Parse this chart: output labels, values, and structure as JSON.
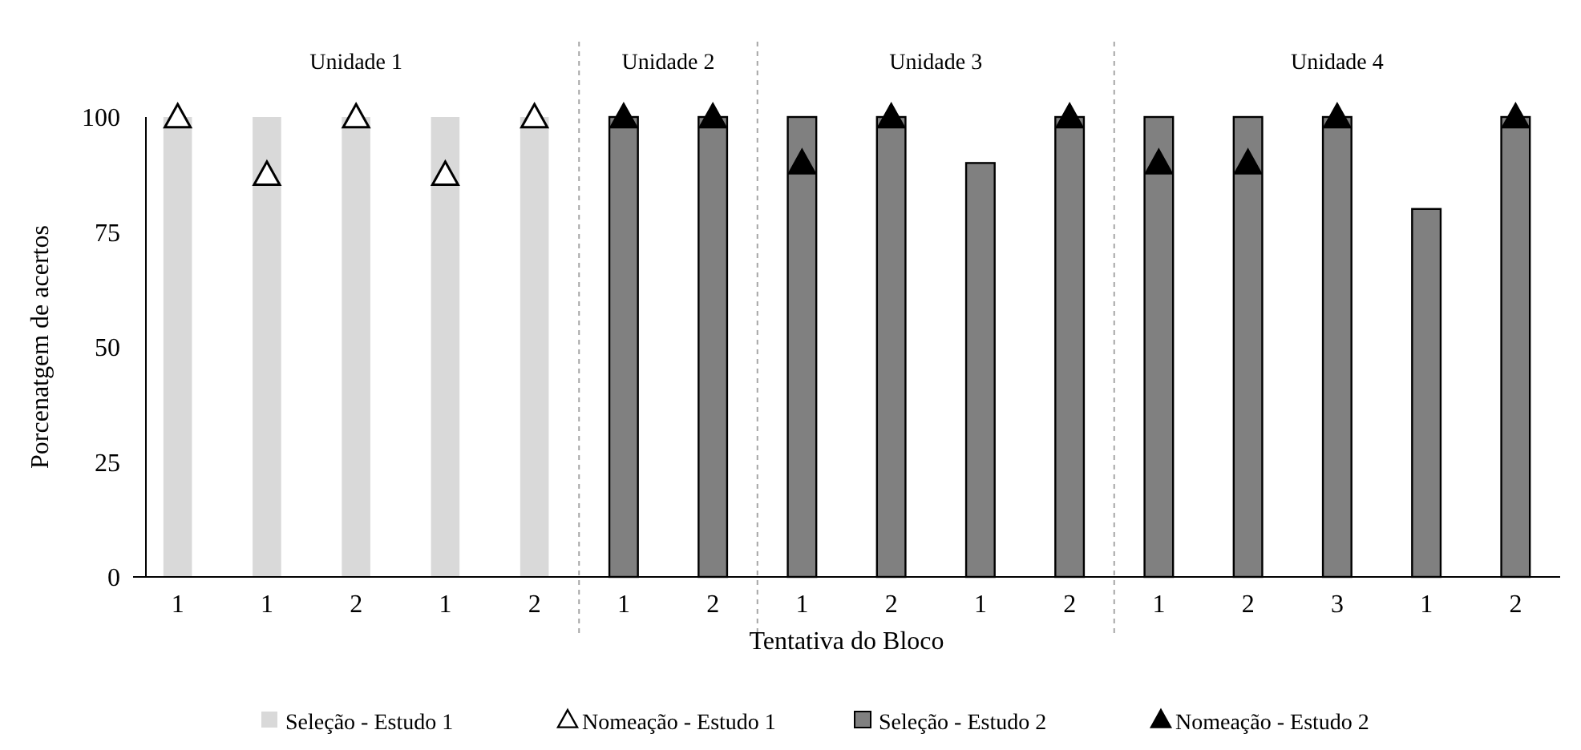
{
  "chart_data": {
    "type": "bar",
    "xlabel": "Tentativa do Bloco",
    "ylabel": "Porcenatgem de acertos",
    "categories": [
      "1",
      "1",
      "2",
      "1",
      "2",
      "1",
      "2",
      "1",
      "2",
      "1",
      "2",
      "1",
      "2",
      "3",
      "1",
      "2"
    ],
    "series": [
      {
        "name": "Seleção - Estudo 1",
        "color": "#d9d9d9",
        "values": [
          100,
          100,
          100,
          100,
          100,
          null,
          null,
          null,
          null,
          null,
          null,
          null,
          null,
          null,
          null,
          null
        ]
      },
      {
        "name": "Nomeação - Estudo 1",
        "type": "scatter",
        "marker": "triangle",
        "color": "#ffffff",
        "values": [
          100,
          87.5,
          100,
          87.5,
          100,
          null,
          null,
          null,
          null,
          null,
          null,
          null,
          null,
          null,
          null,
          null
        ]
      },
      {
        "name": "Seleção - Estudo 2",
        "color": "#808080",
        "values": [
          null,
          null,
          null,
          null,
          null,
          100,
          100,
          100,
          100,
          90,
          100,
          100,
          100,
          100,
          80,
          100
        ]
      },
      {
        "name": "Nomeação - Estudo 2",
        "type": "scatter",
        "marker": "triangle",
        "color": "#000000",
        "values": [
          null,
          null,
          null,
          null,
          null,
          100,
          100,
          90,
          100,
          null,
          100,
          90,
          90,
          100,
          null,
          100
        ]
      }
    ],
    "ylim": [
      0,
      100
    ],
    "yticks": [
      0,
      25,
      50,
      75,
      100
    ],
    "grid": false,
    "legend": "bottom",
    "annotations": [
      "Unidade 1",
      "Unidade 2",
      "Unidade 3",
      "Unidade 4"
    ]
  }
}
